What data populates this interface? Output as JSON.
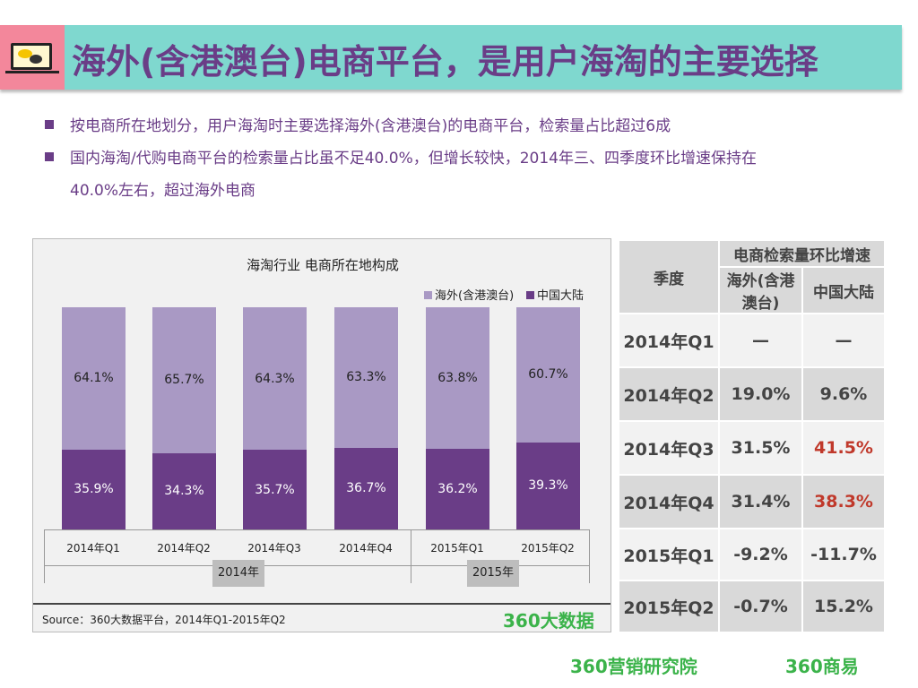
{
  "header": {
    "title": "海外(含港澳台)电商平台，是用户海淘的主要选择",
    "icon": "laptop-chat-icon"
  },
  "bullets": [
    "按电商所在地划分，用户海淘时主要选择海外(含港澳台)的电商平台，检索量占比超过6成",
    "国内海淘/代购电商平台的检索量占比虽不足40.0%，但增长较快，2014年三、四季度环比增速保持在",
    "40.0%左右，超过海外电商"
  ],
  "chart_data": {
    "type": "bar",
    "stacked": true,
    "title": "海淘行业 电商所在地构成",
    "categories": [
      "2014年Q1",
      "2014年Q2",
      "2014年Q3",
      "2014年Q4",
      "2015年Q1",
      "2015年Q2"
    ],
    "groups": [
      "2014年",
      "2015年"
    ],
    "series": [
      {
        "name": "中国大陆",
        "values": [
          35.9,
          34.3,
          35.7,
          36.7,
          36.2,
          39.3
        ],
        "labels": [
          "35.9%",
          "34.3%",
          "35.7%",
          "36.7%",
          "36.2%",
          "39.3%"
        ],
        "color": "#6a3d87"
      },
      {
        "name": "海外(含港澳台)",
        "values": [
          64.1,
          65.7,
          64.3,
          63.3,
          63.8,
          60.7
        ],
        "labels": [
          "64.1%",
          "65.7%",
          "64.3%",
          "63.3%",
          "63.8%",
          "60.7%"
        ],
        "color": "#a999c4"
      }
    ],
    "ylim": [
      0,
      100
    ],
    "legend": "top-right",
    "source": "Source：360大数据平台，2014年Q1-2015年Q2",
    "watermark": "360大数据"
  },
  "table": {
    "col_quarter": "季度",
    "group_header": "电商检索量环比增速",
    "col_overseas": "海外(含港澳台)",
    "col_china": "中国大陆",
    "rows": [
      [
        "2014年Q1",
        "—",
        "—"
      ],
      [
        "2014年Q2",
        "19.0%",
        "9.6%"
      ],
      [
        "2014年Q3",
        "31.5%",
        "41.5%"
      ],
      [
        "2014年Q4",
        "31.4%",
        "38.3%"
      ],
      [
        "2015年Q1",
        "-9.2%",
        "-11.7%"
      ],
      [
        "2015年Q2",
        "-0.7%",
        "15.2%"
      ]
    ],
    "highlight_color": "#c0392b"
  },
  "footer": {
    "logo1": "360营销研究院",
    "logo2": "360商易"
  }
}
